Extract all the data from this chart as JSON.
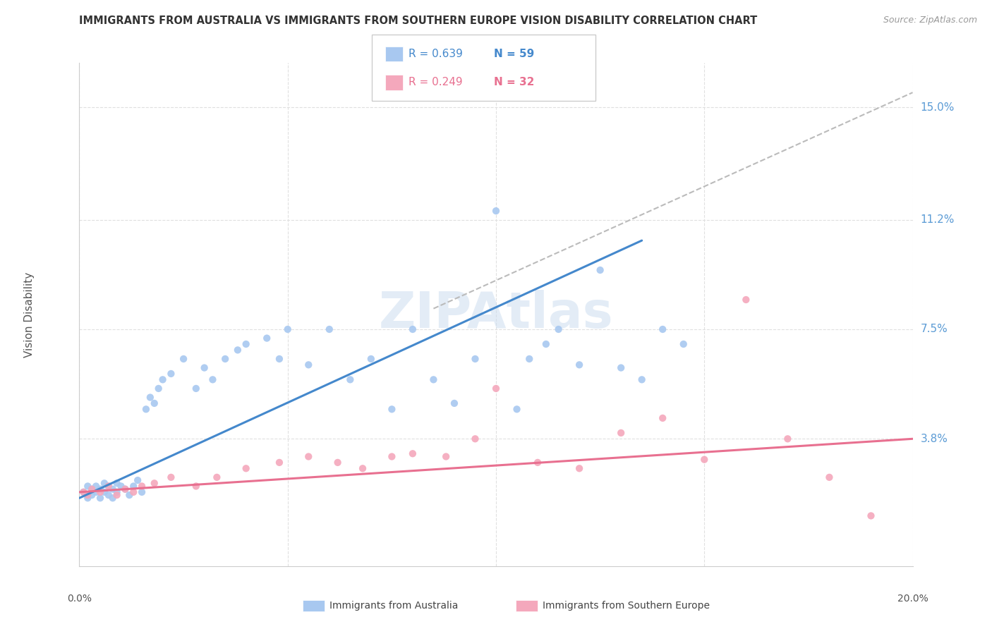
{
  "title": "IMMIGRANTS FROM AUSTRALIA VS IMMIGRANTS FROM SOUTHERN EUROPE VISION DISABILITY CORRELATION CHART",
  "source": "Source: ZipAtlas.com",
  "ylabel": "Vision Disability",
  "ytick_labels": [
    "15.0%",
    "11.2%",
    "7.5%",
    "3.8%"
  ],
  "ytick_values": [
    0.15,
    0.112,
    0.075,
    0.038
  ],
  "xlim": [
    0.0,
    0.2
  ],
  "ylim": [
    -0.005,
    0.165
  ],
  "australia_color": "#A8C8F0",
  "s_europe_color": "#F4A8BC",
  "line_australia_color": "#4488CC",
  "line_s_europe_color": "#E87090",
  "dashed_line_color": "#BBBBBB",
  "background_color": "#FFFFFF",
  "grid_color": "#E0E0E0",
  "right_axis_color": "#5B9BD5",
  "title_color": "#333333",
  "australia_x": [
    0.001,
    0.002,
    0.002,
    0.003,
    0.003,
    0.004,
    0.004,
    0.005,
    0.005,
    0.006,
    0.006,
    0.007,
    0.007,
    0.008,
    0.008,
    0.009,
    0.009,
    0.01,
    0.011,
    0.012,
    0.013,
    0.014,
    0.015,
    0.016,
    0.017,
    0.018,
    0.019,
    0.02,
    0.022,
    0.025,
    0.028,
    0.03,
    0.032,
    0.035,
    0.038,
    0.04,
    0.045,
    0.048,
    0.05,
    0.055,
    0.06,
    0.065,
    0.07,
    0.075,
    0.08,
    0.085,
    0.09,
    0.095,
    0.1,
    0.105,
    0.108,
    0.112,
    0.115,
    0.12,
    0.125,
    0.13,
    0.135,
    0.14,
    0.145
  ],
  "australia_y": [
    0.02,
    0.018,
    0.022,
    0.019,
    0.021,
    0.02,
    0.022,
    0.018,
    0.021,
    0.02,
    0.023,
    0.019,
    0.022,
    0.021,
    0.018,
    0.023,
    0.02,
    0.022,
    0.021,
    0.019,
    0.022,
    0.024,
    0.02,
    0.048,
    0.052,
    0.05,
    0.055,
    0.058,
    0.06,
    0.065,
    0.055,
    0.062,
    0.058,
    0.065,
    0.068,
    0.07,
    0.072,
    0.065,
    0.075,
    0.063,
    0.075,
    0.058,
    0.065,
    0.048,
    0.075,
    0.058,
    0.05,
    0.065,
    0.115,
    0.048,
    0.065,
    0.07,
    0.075,
    0.063,
    0.095,
    0.062,
    0.058,
    0.075,
    0.07
  ],
  "s_europe_x": [
    0.001,
    0.002,
    0.003,
    0.005,
    0.007,
    0.009,
    0.011,
    0.013,
    0.015,
    0.018,
    0.022,
    0.028,
    0.033,
    0.04,
    0.048,
    0.055,
    0.062,
    0.068,
    0.075,
    0.08,
    0.088,
    0.095,
    0.1,
    0.11,
    0.12,
    0.13,
    0.14,
    0.15,
    0.16,
    0.17,
    0.18,
    0.19
  ],
  "s_europe_y": [
    0.02,
    0.019,
    0.021,
    0.02,
    0.022,
    0.019,
    0.021,
    0.02,
    0.022,
    0.023,
    0.025,
    0.022,
    0.025,
    0.028,
    0.03,
    0.032,
    0.03,
    0.028,
    0.032,
    0.033,
    0.032,
    0.038,
    0.055,
    0.03,
    0.028,
    0.04,
    0.045,
    0.031,
    0.085,
    0.038,
    0.025,
    0.012
  ],
  "australia_line_x": [
    0.0,
    0.135
  ],
  "australia_line_y": [
    0.018,
    0.105
  ],
  "s_europe_line_x": [
    0.0,
    0.2
  ],
  "s_europe_line_y": [
    0.02,
    0.038
  ],
  "dashed_line_x": [
    0.085,
    0.2
  ],
  "dashed_line_y": [
    0.082,
    0.155
  ]
}
